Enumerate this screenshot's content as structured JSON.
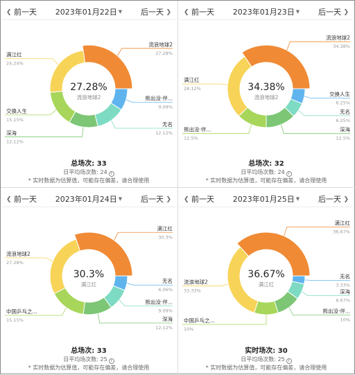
{
  "ui": {
    "prev_label": "前一天",
    "next_label": "后一天"
  },
  "panels": [
    {
      "date": "2023年01月22日",
      "center_pct": "27.28%",
      "center_name": "流浪地球2",
      "total_label": "总场次:",
      "total_value": "33",
      "avg_label": "日平均场次数:",
      "avg_value": "24",
      "note": "* 实时数据为估算值，可能存在偏差，请合理使用",
      "chart_data": {
        "type": "pie",
        "slices": [
          {
            "name": "流浪地球2",
            "pct": "27.28%",
            "value": 27.28,
            "color": "#f08a35"
          },
          {
            "name": "满江红",
            "pct": "24.24%",
            "value": 24.24,
            "color": "#f7d358"
          },
          {
            "name": "交换人生",
            "pct": "15.15%",
            "value": 15.15,
            "color": "#a7d65a"
          },
          {
            "name": "深海",
            "pct": "12.12%",
            "value": 12.12,
            "color": "#7cc675"
          },
          {
            "name": "无名",
            "pct": "12.12%",
            "value": 12.12,
            "color": "#7ddbc3"
          },
          {
            "name": "熊出没·伴...",
            "pct": "9.09%",
            "value": 9.09,
            "color": "#5fb4ee"
          }
        ]
      }
    },
    {
      "date": "2023年01月23日",
      "center_pct": "34.38%",
      "center_name": "流浪地球2",
      "total_label": "总场次:",
      "total_value": "32",
      "avg_label": "日平均场次数:",
      "avg_value": "24",
      "note": "* 实时数据为估算值，可能存在偏差，请合理使用",
      "chart_data": {
        "type": "pie",
        "slices": [
          {
            "name": "流浪地球2",
            "pct": "34.38%",
            "value": 34.38,
            "color": "#f08a35"
          },
          {
            "name": "满江红",
            "pct": "28.12%",
            "value": 28.12,
            "color": "#f7d358"
          },
          {
            "name": "熊出没·伴...",
            "pct": "12.5%",
            "value": 12.5,
            "color": "#a7d65a"
          },
          {
            "name": "深海",
            "pct": "12.5%",
            "value": 12.5,
            "color": "#7cc675"
          },
          {
            "name": "无名",
            "pct": "6.25%",
            "value": 6.25,
            "color": "#7ddbc3"
          },
          {
            "name": "交换人生",
            "pct": "6.25%",
            "value": 6.25,
            "color": "#5fb4ee"
          }
        ]
      }
    },
    {
      "date": "2023年01月24日",
      "center_pct": "30.3%",
      "center_name": "满江红",
      "total_label": "总场次:",
      "total_value": "33",
      "avg_label": "日平均场次数:",
      "avg_value": "25",
      "note": "* 实时数据为估算值，可能存在偏差，请合理使用",
      "chart_data": {
        "type": "pie",
        "slices": [
          {
            "name": "满江红",
            "pct": "30.3%",
            "value": 30.3,
            "color": "#f08a35"
          },
          {
            "name": "流浪地球2",
            "pct": "27.28%",
            "value": 27.28,
            "color": "#f7d358"
          },
          {
            "name": "中国乒乓之...",
            "pct": "15.15%",
            "value": 15.15,
            "color": "#a7d65a"
          },
          {
            "name": "深海",
            "pct": "12.12%",
            "value": 12.12,
            "color": "#7cc675"
          },
          {
            "name": "熊出没·伴...",
            "pct": "9.09%",
            "value": 9.09,
            "color": "#7ddbc3"
          },
          {
            "name": "无名",
            "pct": "6.06%",
            "value": 6.06,
            "color": "#5fb4ee"
          }
        ]
      }
    },
    {
      "date": "2023年01月25日",
      "center_pct": "36.67%",
      "center_name": "满江红",
      "total_label": "实时场次:",
      "total_value": "30",
      "avg_label": "日平均场次数:",
      "avg_value": "25",
      "note": "* 实时数据为估算值，可能存在偏差，请合理使用",
      "chart_data": {
        "type": "pie",
        "slices": [
          {
            "name": "满江红",
            "pct": "36.67%",
            "value": 36.67,
            "color": "#f08a35"
          },
          {
            "name": "流浪地球2",
            "pct": "33.33%",
            "value": 33.33,
            "color": "#f7d358"
          },
          {
            "name": "中国乒乓之...",
            "pct": "10%",
            "value": 10,
            "color": "#a7d65a"
          },
          {
            "name": "熊出没·伴...",
            "pct": "10%",
            "value": 10,
            "color": "#7cc675"
          },
          {
            "name": "深海",
            "pct": "6.67%",
            "value": 6.67,
            "color": "#7ddbc3"
          },
          {
            "name": "无名",
            "pct": "3.33%",
            "value": 3.33,
            "color": "#5fb4ee"
          }
        ]
      }
    }
  ]
}
